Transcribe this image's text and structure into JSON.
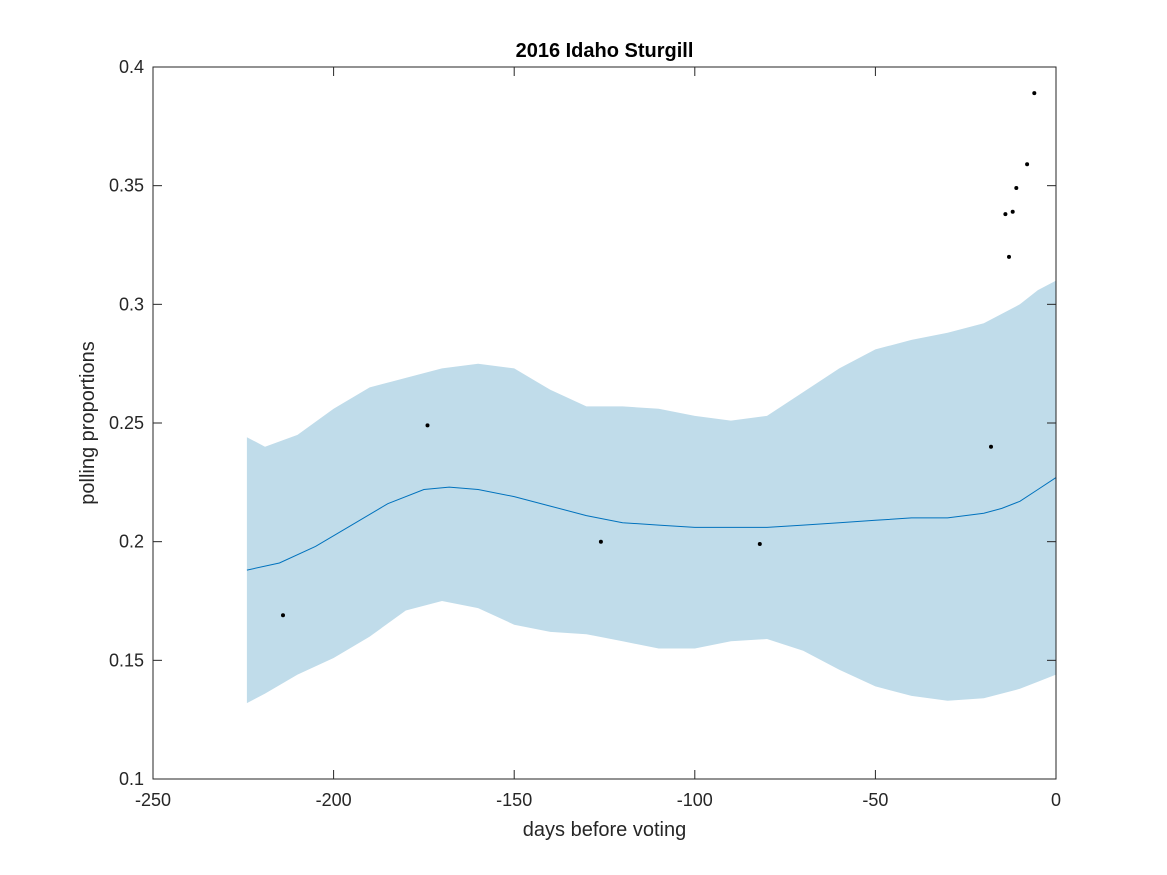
{
  "chart_data": {
    "type": "line",
    "title": "2016 Idaho Sturgill",
    "xlabel": "days before voting",
    "ylabel": "polling proportions",
    "xlim": [
      -250,
      0
    ],
    "ylim": [
      0.1,
      0.4
    ],
    "xticks": [
      -250,
      -200,
      -150,
      -100,
      -50,
      0
    ],
    "yticks": [
      0.1,
      0.15,
      0.2,
      0.25,
      0.3,
      0.35,
      0.4
    ],
    "xtick_labels": [
      "-250",
      "-200",
      "-150",
      "-100",
      "-50",
      "0"
    ],
    "ytick_labels": [
      "0.1",
      "0.15",
      "0.2",
      "0.25",
      "0.3",
      "0.35",
      "0.4"
    ],
    "grid": false,
    "colors": {
      "band": "#c0dcea",
      "line": "#0072bd",
      "points": "#000000"
    },
    "series": [
      {
        "type": "area",
        "x": [
          -224,
          -219,
          -210,
          -200,
          -190,
          -180,
          -170,
          -160,
          -150,
          -140,
          -130,
          -120,
          -110,
          -100,
          -90,
          -80,
          -70,
          -60,
          -50,
          -40,
          -30,
          -20,
          -10,
          -5,
          0
        ],
        "upper": [
          0.244,
          0.24,
          0.245,
          0.256,
          0.265,
          0.269,
          0.273,
          0.275,
          0.273,
          0.264,
          0.257,
          0.257,
          0.256,
          0.253,
          0.251,
          0.253,
          0.263,
          0.273,
          0.281,
          0.285,
          0.288,
          0.292,
          0.3,
          0.306,
          0.31
        ],
        "lower": [
          0.132,
          0.136,
          0.144,
          0.151,
          0.16,
          0.171,
          0.175,
          0.172,
          0.165,
          0.162,
          0.161,
          0.158,
          0.155,
          0.155,
          0.158,
          0.159,
          0.154,
          0.146,
          0.139,
          0.135,
          0.133,
          0.134,
          0.138,
          0.141,
          0.144
        ]
      },
      {
        "type": "line",
        "x": [
          -224,
          -215,
          -205,
          -195,
          -185,
          -175,
          -168,
          -160,
          -150,
          -140,
          -130,
          -120,
          -110,
          -100,
          -90,
          -80,
          -70,
          -60,
          -50,
          -40,
          -30,
          -20,
          -15,
          -10,
          -5,
          0
        ],
        "y": [
          0.188,
          0.191,
          0.198,
          0.207,
          0.216,
          0.222,
          0.223,
          0.222,
          0.219,
          0.215,
          0.211,
          0.208,
          0.207,
          0.206,
          0.206,
          0.206,
          0.207,
          0.208,
          0.209,
          0.21,
          0.21,
          0.212,
          0.214,
          0.217,
          0.222,
          0.227
        ]
      },
      {
        "type": "scatter",
        "x": [
          -214,
          -174,
          -126,
          -82,
          -18,
          -14,
          -13,
          -12,
          -11,
          -8,
          -6
        ],
        "y": [
          0.169,
          0.249,
          0.2,
          0.199,
          0.24,
          0.338,
          0.32,
          0.339,
          0.349,
          0.359,
          0.389
        ]
      }
    ]
  }
}
